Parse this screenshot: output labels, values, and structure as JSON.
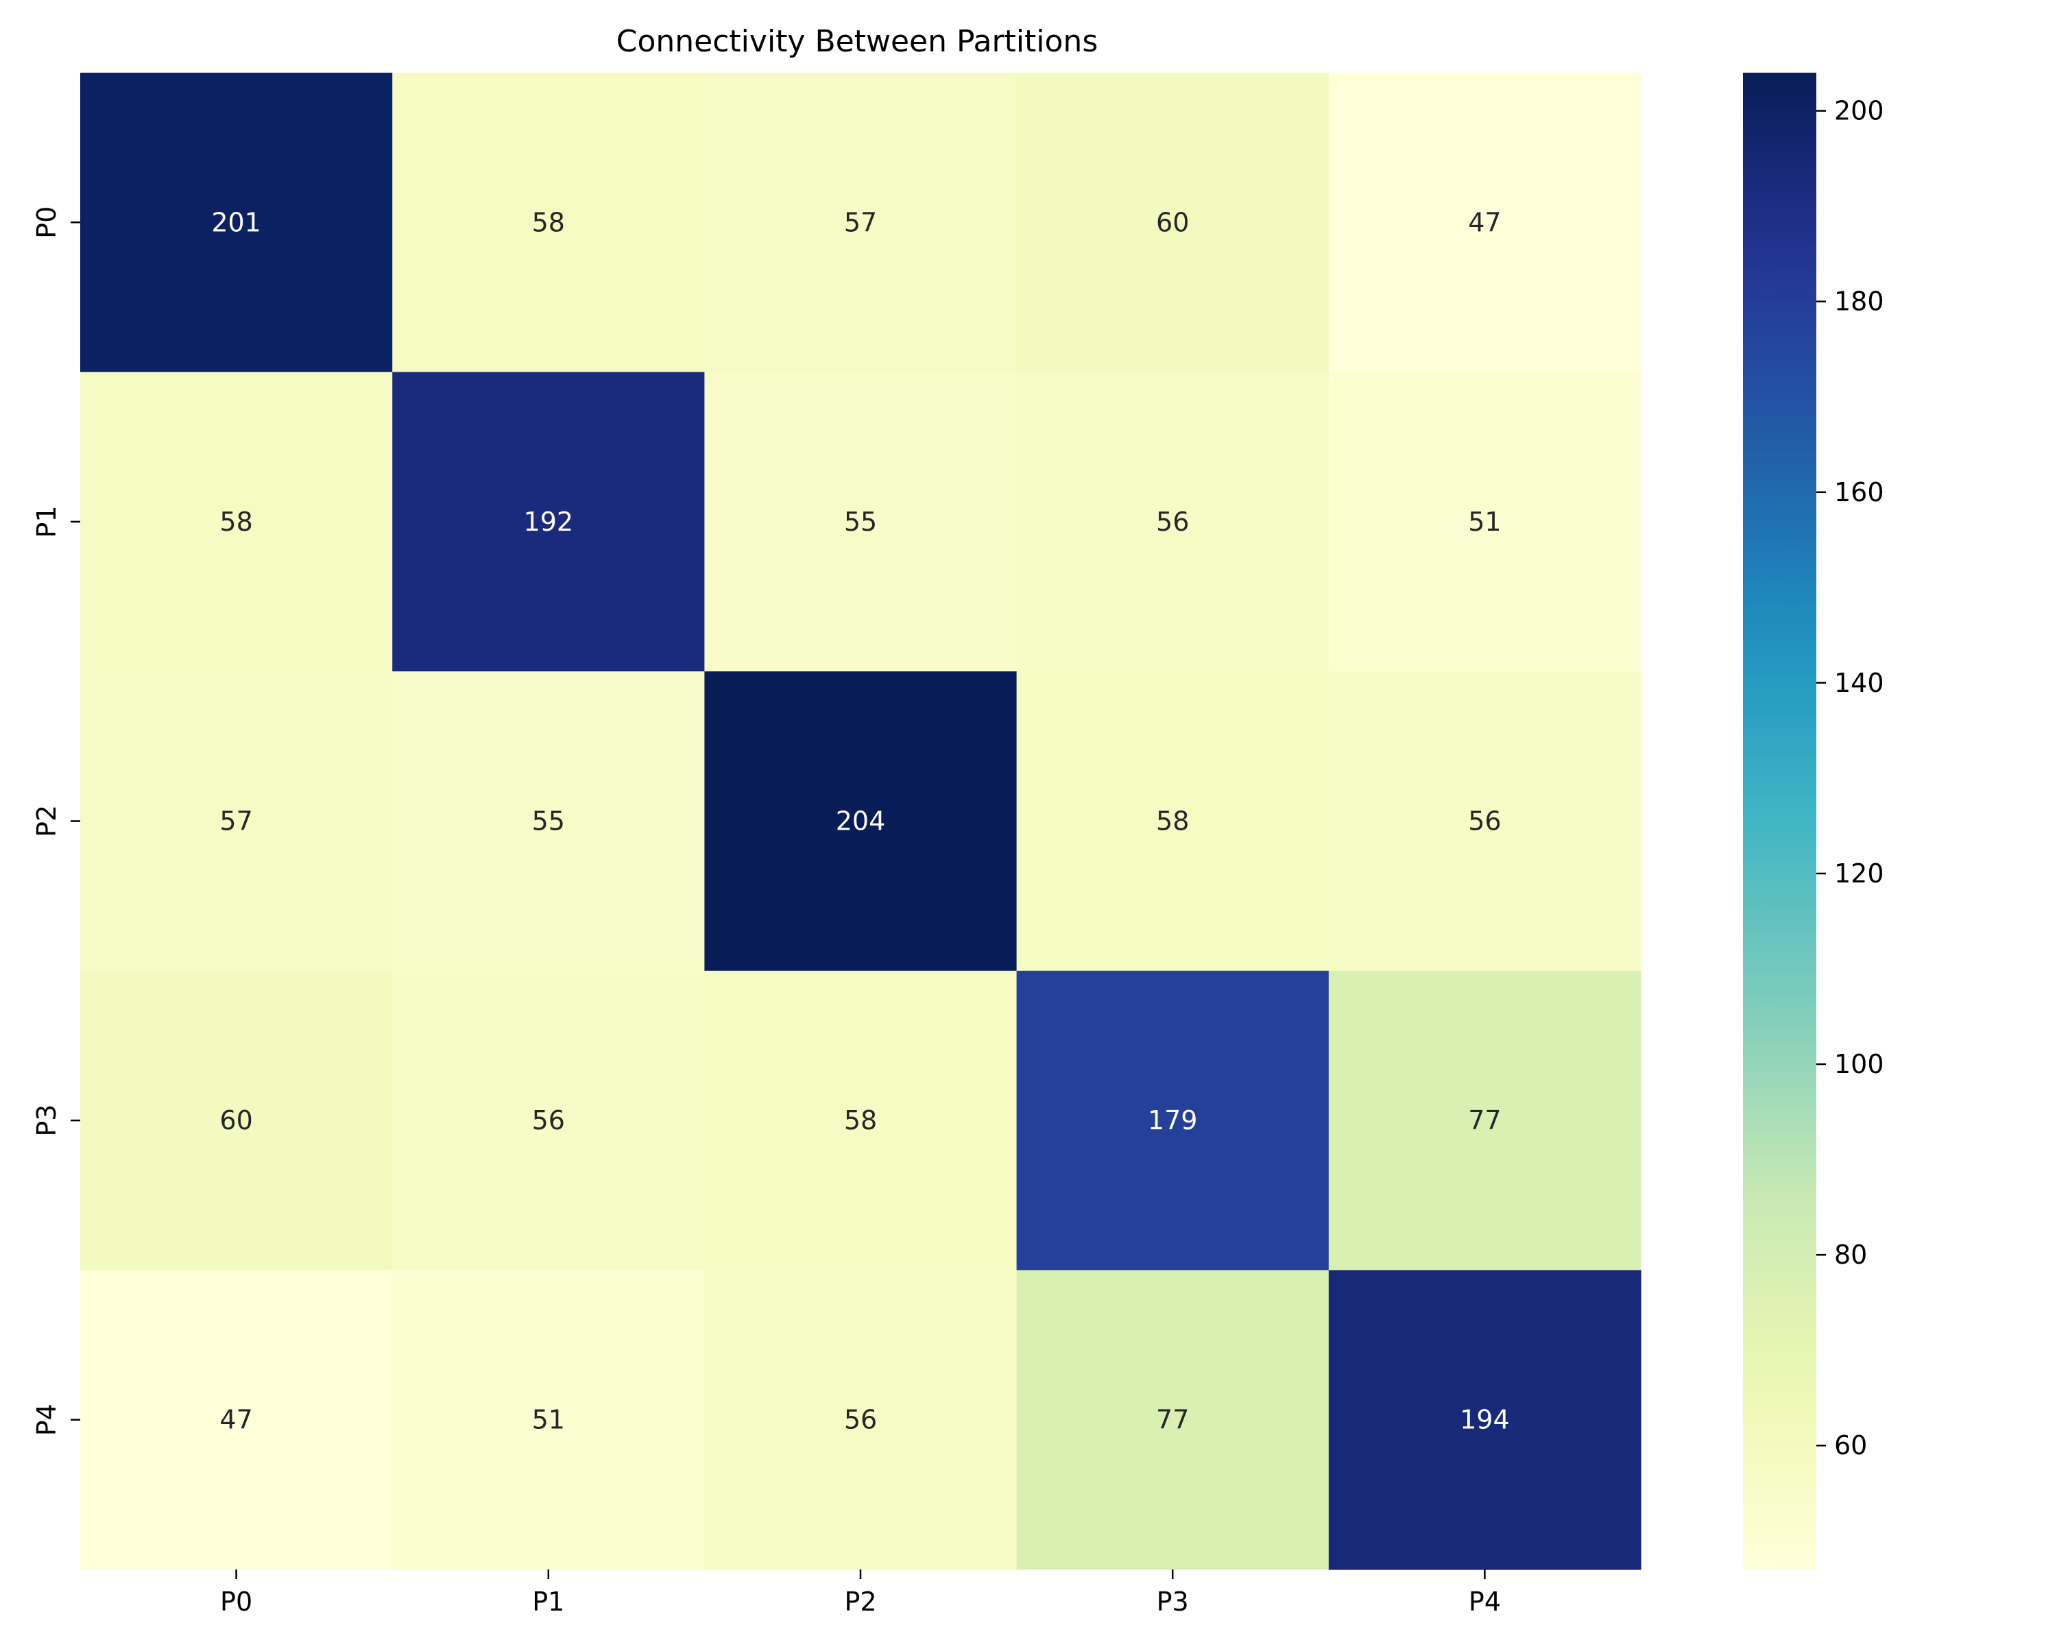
{
  "chart_data": {
    "type": "heatmap",
    "title": "Connectivity Between Partitions",
    "xlabel": "",
    "ylabel": "",
    "x_categories": [
      "P0",
      "P1",
      "P2",
      "P3",
      "P4"
    ],
    "y_categories": [
      "P0",
      "P1",
      "P2",
      "P3",
      "P4"
    ],
    "values": [
      [
        201,
        58,
        57,
        60,
        47
      ],
      [
        58,
        192,
        55,
        56,
        51
      ],
      [
        57,
        55,
        204,
        58,
        56
      ],
      [
        60,
        56,
        58,
        179,
        77
      ],
      [
        47,
        51,
        56,
        77,
        194
      ]
    ],
    "colormap": "YlGnBu",
    "vmin": 47,
    "vmax": 204,
    "colorbar": {
      "ticks": [
        60,
        80,
        100,
        120,
        140,
        160,
        180,
        200
      ],
      "placement": "right"
    },
    "annotate_cells": true,
    "grid": false,
    "legend": "none"
  }
}
